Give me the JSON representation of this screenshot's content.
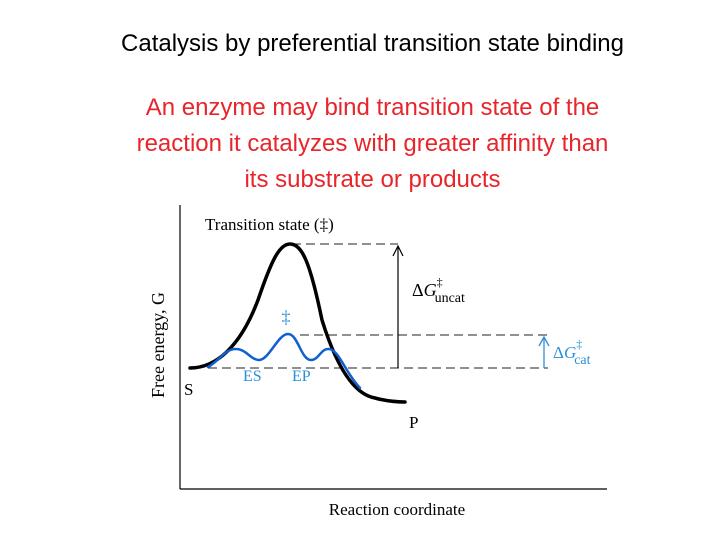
{
  "title": "Catalysis by preferential transition state binding",
  "subtitle": {
    "lines": [
      "An enzyme may bind transition state of the",
      "reaction it catalyzes with greater affinity than",
      "its substrate or products"
    ]
  },
  "diagram": {
    "y_axis_label": "Free energy, G",
    "x_axis_label": "Reaction coordinate",
    "transition_state_label": "Transition state (‡)",
    "catalyzed_ts_symbol": "‡",
    "labels": {
      "S": "S",
      "P": "P",
      "ES": "ES",
      "EP": "EP"
    },
    "delta_uncat": {
      "delta": "Δ",
      "var": "G",
      "sup": "‡",
      "sub": "uncat"
    },
    "delta_cat": {
      "delta": "Δ",
      "var": "G",
      "sup": "‡",
      "sub": "cat"
    }
  },
  "colors": {
    "title_text": "#000000",
    "subtitle_text": "#e8252a",
    "uncatalyzed_curve": "#000000",
    "catalyzed_curve": "#1060d0",
    "catalyzed_label": "#2a8fd8"
  }
}
